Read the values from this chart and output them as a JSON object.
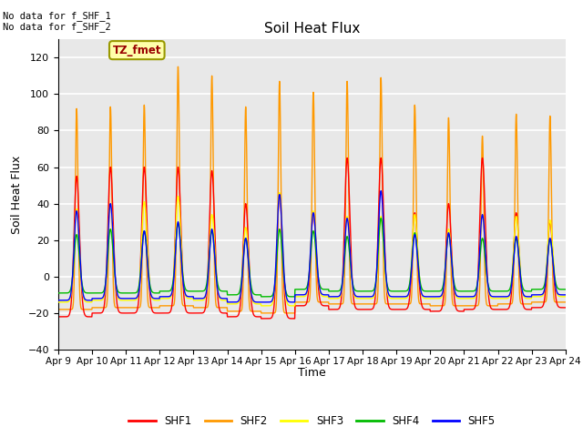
{
  "title": "Soil Heat Flux",
  "ylabel": "Soil Heat Flux",
  "xlabel": "Time",
  "no_data_text_1": "No data for f_SHF_1",
  "no_data_text_2": "No data for f_SHF_2",
  "tz_label": "TZ_fmet",
  "ylim": [
    -40,
    130
  ],
  "yticks": [
    -40,
    -20,
    0,
    20,
    40,
    60,
    80,
    100,
    120
  ],
  "x_start_day": 9,
  "x_end_day": 24,
  "x_tick_days": [
    9,
    10,
    11,
    12,
    13,
    14,
    15,
    16,
    17,
    18,
    19,
    20,
    21,
    22,
    23,
    24
  ],
  "x_tick_labels": [
    "Apr 9",
    "Apr 10",
    "Apr 11",
    "Apr 12",
    "Apr 13",
    "Apr 14",
    "Apr 15",
    "Apr 16",
    "Apr 17",
    "Apr 18",
    "Apr 19",
    "Apr 20",
    "Apr 21",
    "Apr 22",
    "Apr 23",
    "Apr 24"
  ],
  "series_names": [
    "SHF1",
    "SHF2",
    "SHF3",
    "SHF4",
    "SHF5"
  ],
  "series_colors": [
    "#ff0000",
    "#ff9900",
    "#ffff00",
    "#00bb00",
    "#0000ff"
  ],
  "background_color": "#e8e8e8",
  "grid_color": "#ffffff",
  "shf1_peaks": [
    55,
    60,
    60,
    60,
    58,
    40,
    45,
    35,
    65,
    65,
    35,
    40,
    65,
    35,
    30
  ],
  "shf2_peaks": [
    92,
    93,
    94,
    115,
    110,
    93,
    107,
    101,
    107,
    109,
    94,
    87,
    77,
    89,
    88
  ],
  "shf3_peaks": [
    37,
    40,
    41,
    44,
    34,
    27,
    46,
    36,
    33,
    33,
    34,
    26,
    34,
    33,
    31
  ],
  "shf4_peaks": [
    23,
    26,
    25,
    29,
    25,
    21,
    26,
    25,
    22,
    32,
    24,
    23,
    21,
    21,
    20
  ],
  "shf5_peaks": [
    36,
    40,
    25,
    30,
    26,
    21,
    45,
    35,
    32,
    47,
    23,
    24,
    34,
    22,
    21
  ],
  "shf1_troughs": [
    -22,
    -20,
    -20,
    -20,
    -20,
    -22,
    -23,
    -16,
    -18,
    -18,
    -18,
    -19,
    -18,
    -18,
    -17
  ],
  "shf2_troughs": [
    -18,
    -17,
    -17,
    -16,
    -17,
    -19,
    -20,
    -14,
    -15,
    -15,
    -15,
    -16,
    -16,
    -15,
    -14
  ],
  "shf3_troughs": [
    -14,
    -13,
    -13,
    -12,
    -13,
    -15,
    -16,
    -11,
    -12,
    -12,
    -12,
    -12,
    -12,
    -12,
    -11
  ],
  "shf4_troughs": [
    -9,
    -9,
    -9,
    -8,
    -8,
    -10,
    -11,
    -7,
    -8,
    -8,
    -8,
    -8,
    -8,
    -8,
    -7
  ],
  "shf5_troughs": [
    -13,
    -12,
    -12,
    -11,
    -12,
    -14,
    -14,
    -10,
    -11,
    -11,
    -11,
    -11,
    -11,
    -11,
    -10
  ]
}
